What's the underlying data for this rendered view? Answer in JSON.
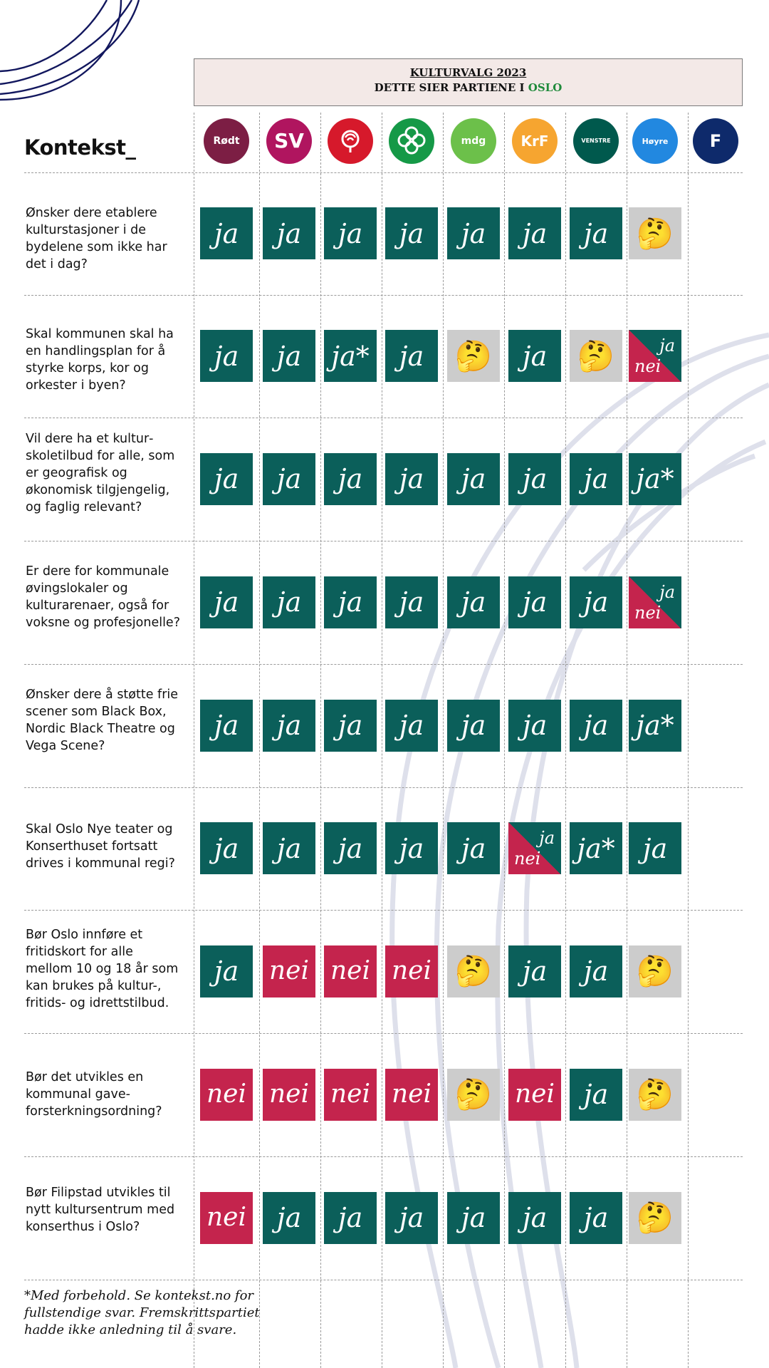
{
  "header": {
    "line1": "KULTURVALG 2023",
    "line2_prefix": "DETTE SIER PARTIENE I",
    "line2_city": "OSLO"
  },
  "brand": "Kontekst_",
  "parties": [
    {
      "key": "rodt",
      "label": "Rødt",
      "color": "#7c1e44"
    },
    {
      "key": "sv",
      "label": "SV",
      "color": "#b0155f"
    },
    {
      "key": "ap",
      "label": "",
      "color": "#d6192b"
    },
    {
      "key": "sp",
      "label": "",
      "color": "#159947"
    },
    {
      "key": "mdg",
      "label": "mdg",
      "color": "#6cc04a"
    },
    {
      "key": "krf",
      "label": "KrF",
      "color": "#f6a530"
    },
    {
      "key": "v",
      "label": "VENSTRE",
      "color": "#00594d"
    },
    {
      "key": "h",
      "label": "Høyre",
      "color": "#2288e0"
    },
    {
      "key": "frp",
      "label": "F",
      "color": "#0e2a6b"
    }
  ],
  "answer_labels": {
    "ja": "ja",
    "nei": "nei",
    "ja_star": "ja*"
  },
  "questions": [
    {
      "text": "Ønsker dere etablere kultur­stasjoner i de bydelene som ikke har det i dag?",
      "answers": [
        "ja",
        "ja",
        "ja",
        "ja",
        "ja",
        "ja",
        "ja",
        "unsure"
      ]
    },
    {
      "text": "Skal kommunen skal ha en handlingsplan for å styrke korps, kor og orkester i byen?",
      "answers": [
        "ja",
        "ja",
        "ja_star",
        "ja",
        "unsure",
        "ja",
        "unsure",
        "split"
      ]
    },
    {
      "text": "Vil dere ha et kultur­skoletilbud for alle, som er geografisk og økonomisk tilgjengelig, og faglig relevant?",
      "answers": [
        "ja",
        "ja",
        "ja",
        "ja",
        "ja",
        "ja",
        "ja",
        "ja_star"
      ]
    },
    {
      "text": "Er dere for kommu­nale øvingslokaler og kulturarenaer, også for voksne og profesjonelle?",
      "answers": [
        "ja",
        "ja",
        "ja",
        "ja",
        "ja",
        "ja",
        "ja",
        "split"
      ]
    },
    {
      "text": "Ønsker dere å støtte frie scener som Black Box, Nordic Black Theatre og Vega Scene?",
      "answers": [
        "ja",
        "ja",
        "ja",
        "ja",
        "ja",
        "ja",
        "ja",
        "ja_star"
      ]
    },
    {
      "text": "Skal Oslo Nye teater og Konserthuset fort­satt drives i kommunal regi?",
      "answers": [
        "ja",
        "ja",
        "ja",
        "ja",
        "ja",
        "split",
        "ja_star",
        "ja"
      ]
    },
    {
      "text": "Bør Oslo innføre et fritidskort for alle mellom 10 og 18 år som kan brukes på kultur-, fritids- og idrettstilbud.",
      "answers": [
        "ja",
        "nei",
        "nei",
        "nei",
        "unsure",
        "ja",
        "ja",
        "unsure"
      ]
    },
    {
      "text": "Bør det utvikles en kommunal gave­forsterkningsordning?",
      "answers": [
        "nei",
        "nei",
        "nei",
        "nei",
        "unsure",
        "nei",
        "ja",
        "unsure"
      ]
    },
    {
      "text": "Bør Filipstad utvikles til nytt kultursentrum med konserthus i Oslo?",
      "answers": [
        "nei",
        "ja",
        "ja",
        "ja",
        "ja",
        "ja",
        "ja",
        "unsure"
      ]
    }
  ],
  "footnote": "*Med forbehold. Se kontekst.no for fullstendige svar. Fremskrittspartiet hadde ikke anledning til å svare."
}
